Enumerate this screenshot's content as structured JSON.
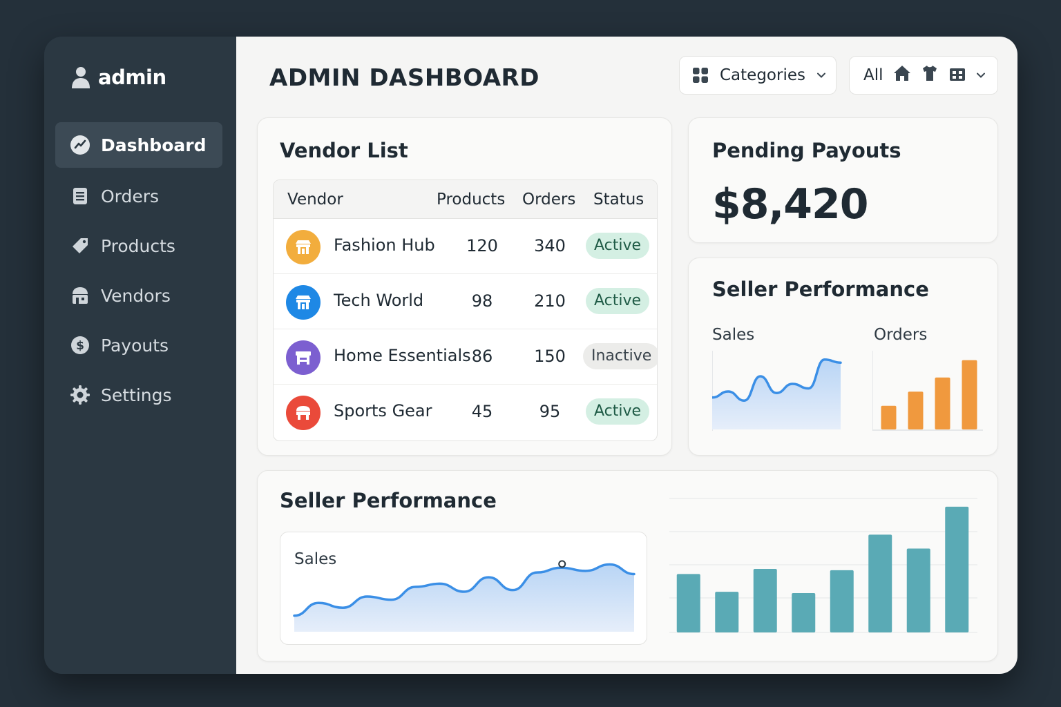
{
  "sidebar": {
    "brand": "admin",
    "items": [
      {
        "label": "Dashboard",
        "icon": "trend-icon",
        "active": true
      },
      {
        "label": "Orders",
        "icon": "document-icon"
      },
      {
        "label": "Products",
        "icon": "tag-icon"
      },
      {
        "label": "Vendors",
        "icon": "store-icon"
      },
      {
        "label": "Payouts",
        "icon": "dollar-icon"
      },
      {
        "label": "Settings",
        "icon": "gear-icon"
      }
    ]
  },
  "header": {
    "title": "ADMIN DASHBOARD",
    "categories_label": "Categories",
    "filter_label": "All"
  },
  "vendor_list": {
    "title": "Vendor List",
    "columns": [
      "Vendor",
      "Products",
      "Orders",
      "Status"
    ],
    "rows": [
      {
        "name": "Fashion Hub",
        "products": "120",
        "orders": "340",
        "status": "Active",
        "color": "#f2ad3d"
      },
      {
        "name": "Tech World",
        "products": "98",
        "orders": "210",
        "status": "Active",
        "color": "#1e88e5"
      },
      {
        "name": "Home Essentials",
        "products": "86",
        "orders": "150",
        "status": "Inactive",
        "color": "#7c5fd0"
      },
      {
        "name": "Sports Gear",
        "products": "45",
        "orders": "95",
        "status": "Active",
        "color": "#ea4a3a"
      }
    ]
  },
  "payouts": {
    "title": "Pending Payouts",
    "amount": "$8,420"
  },
  "seller_performance_small": {
    "title": "Seller Performance",
    "sales_label": "Sales",
    "orders_label": "Orders"
  },
  "seller_performance_wide": {
    "title": "Seller Performance",
    "sales_label": "Sales"
  },
  "chart_data": [
    {
      "type": "area",
      "title": "Sales",
      "values": [
        42,
        50,
        38,
        70,
        48,
        60,
        54,
        92,
        88
      ],
      "color": "#3b8fe6"
    },
    {
      "type": "bar",
      "title": "Orders",
      "values": [
        30,
        48,
        66,
        88
      ],
      "color": "#f0993e"
    },
    {
      "type": "area",
      "title": "Sales",
      "values": [
        20,
        36,
        30,
        44,
        40,
        56,
        60,
        50,
        68,
        52,
        74,
        80,
        76,
        84,
        72
      ],
      "color": "#3b8fe6"
    },
    {
      "type": "bar",
      "values": [
        46,
        32,
        50,
        31,
        49,
        77,
        66,
        99
      ],
      "color": "#5aaab5"
    }
  ]
}
